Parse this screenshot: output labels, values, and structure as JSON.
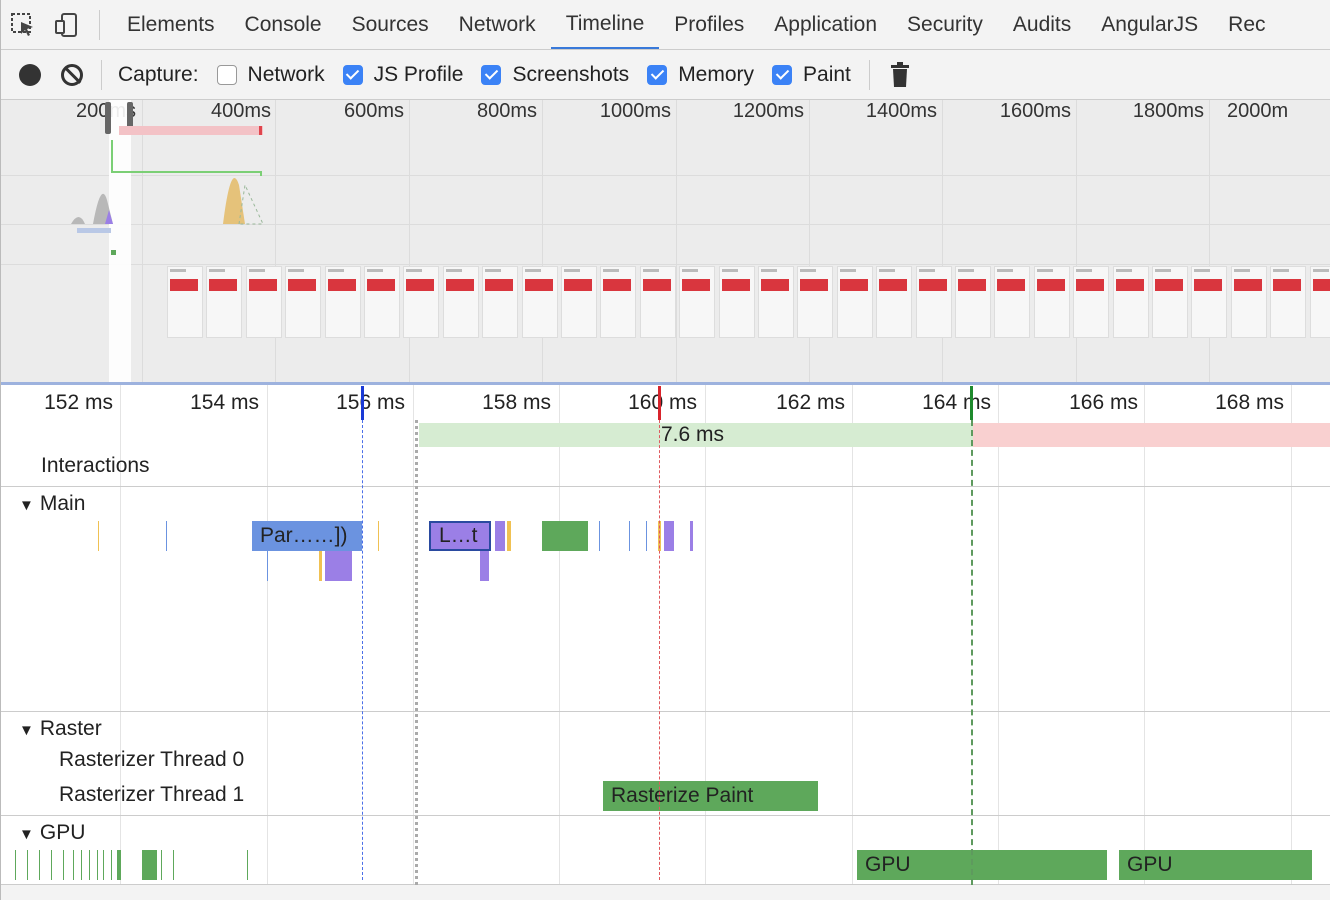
{
  "tabs": [
    "Elements",
    "Console",
    "Sources",
    "Network",
    "Timeline",
    "Profiles",
    "Application",
    "Security",
    "Audits",
    "AngularJS",
    "Rec"
  ],
  "active_tab": "Timeline",
  "toolbar": {
    "capture_label": "Capture:",
    "checkboxes": [
      {
        "label": "Network",
        "checked": false
      },
      {
        "label": "JS Profile",
        "checked": true
      },
      {
        "label": "Screenshots",
        "checked": true
      },
      {
        "label": "Memory",
        "checked": true
      },
      {
        "label": "Paint",
        "checked": true
      }
    ]
  },
  "overview": {
    "ticks": [
      "200ms",
      "400ms",
      "600ms",
      "800ms",
      "1000ms",
      "1200ms",
      "1400ms",
      "1600ms",
      "1800ms",
      "2000m"
    ]
  },
  "ruler": {
    "ticks": [
      "152 ms",
      "154 ms",
      "156 ms",
      "158 ms",
      "160 ms",
      "162 ms",
      "164 ms",
      "166 ms",
      "168 ms"
    ]
  },
  "interactions": {
    "label": "Interactions",
    "duration": "7.6 ms"
  },
  "main": {
    "label": "Main",
    "events": [
      "Par……])",
      "L…t"
    ]
  },
  "raster": {
    "label": "Raster",
    "threads": [
      "Rasterizer Thread 0",
      "Rasterizer Thread 1"
    ],
    "event": "Rasterize Paint"
  },
  "gpu": {
    "label": "GPU",
    "events": [
      "GPU",
      "GPU"
    ]
  },
  "colors": {
    "accent": "#3879d9",
    "scripting": "#f0c152",
    "rendering": "#9b7fe6",
    "painting": "#5ea85b",
    "loading": "#6b93e0",
    "interaction_green": "#d6ecd2",
    "interaction_red": "#f9d0d0"
  }
}
